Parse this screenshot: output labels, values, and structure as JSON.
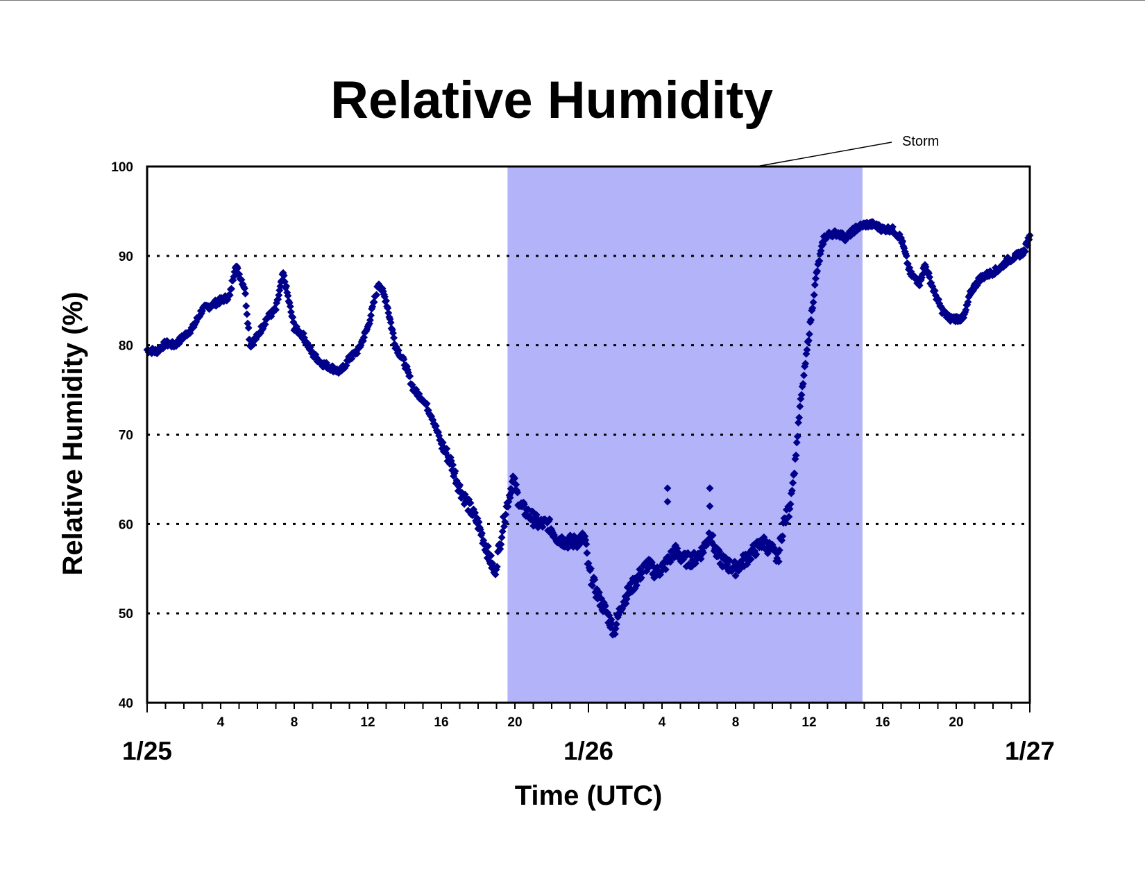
{
  "chart_data": {
    "type": "scatter",
    "title": "Relative Humidity",
    "xlabel": "Time (UTC)",
    "ylabel": "Relative Humidity (%)",
    "ylim": [
      40,
      100
    ],
    "xlim_hours": [
      0,
      48
    ],
    "yticks": [
      "40",
      "50",
      "60",
      "70",
      "80",
      "90",
      "100"
    ],
    "xticks": [
      {
        "hour": 4,
        "label": "4"
      },
      {
        "hour": 8,
        "label": "8"
      },
      {
        "hour": 12,
        "label": "12"
      },
      {
        "hour": 16,
        "label": "16"
      },
      {
        "hour": 20,
        "label": "20"
      },
      {
        "hour": 28,
        "label": "4"
      },
      {
        "hour": 32,
        "label": "8"
      },
      {
        "hour": 36,
        "label": "12"
      },
      {
        "hour": 40,
        "label": "16"
      },
      {
        "hour": 44,
        "label": "20"
      }
    ],
    "date_labels": [
      {
        "hour": 0,
        "label": "1/25"
      },
      {
        "hour": 24,
        "label": "1/26"
      },
      {
        "hour": 48,
        "label": "1/27"
      }
    ],
    "grid": "horizontal dotted",
    "shaded_region": {
      "label": "Storm",
      "x_start_hours": 19.6,
      "x_end_hours": 38.9,
      "color": "#b3b3fa"
    },
    "series": [
      {
        "marker": "diamond",
        "color": "#00008b",
        "points": [
          [
            0.0,
            79.5
          ],
          [
            0.5,
            79.3
          ],
          [
            1.0,
            80.2
          ],
          [
            1.5,
            80.0
          ],
          [
            2.0,
            81.0
          ],
          [
            2.5,
            82.0
          ],
          [
            3.0,
            84.0
          ],
          [
            3.5,
            84.5
          ],
          [
            4.0,
            85.0
          ],
          [
            4.5,
            85.5
          ],
          [
            4.8,
            89.0
          ],
          [
            5.3,
            86.5
          ],
          [
            5.6,
            80.0
          ],
          [
            6.0,
            81.0
          ],
          [
            6.5,
            83.0
          ],
          [
            7.0,
            84.0
          ],
          [
            7.4,
            88.0
          ],
          [
            7.7,
            85.0
          ],
          [
            8.0,
            82.0
          ],
          [
            8.5,
            81.0
          ],
          [
            9.0,
            79.0
          ],
          [
            9.5,
            78.0
          ],
          [
            10.0,
            77.5
          ],
          [
            10.5,
            77.0
          ],
          [
            11.0,
            78.5
          ],
          [
            11.5,
            79.5
          ],
          [
            12.0,
            82.0
          ],
          [
            12.6,
            87.0
          ],
          [
            13.0,
            85.0
          ],
          [
            13.5,
            80.0
          ],
          [
            14.0,
            78.0
          ],
          [
            14.5,
            75.0
          ],
          [
            15.0,
            74.0
          ],
          [
            15.5,
            72.0
          ],
          [
            16.0,
            69.0
          ],
          [
            16.5,
            67.0
          ],
          [
            17.0,
            64.0
          ],
          [
            17.5,
            62.0
          ],
          [
            18.0,
            60.0
          ],
          [
            18.5,
            57.0
          ],
          [
            18.9,
            54.5
          ],
          [
            19.2,
            58.0
          ],
          [
            19.5,
            61.5
          ],
          [
            19.9,
            65.0
          ],
          [
            20.3,
            62.0
          ],
          [
            20.8,
            61.0
          ],
          [
            21.3,
            60.0
          ],
          [
            21.8,
            60.0
          ],
          [
            22.3,
            58.5
          ],
          [
            22.8,
            58.0
          ],
          [
            23.3,
            58.0
          ],
          [
            23.8,
            58.5
          ],
          [
            24.0,
            55.0
          ],
          [
            24.5,
            52.0
          ],
          [
            25.0,
            50.0
          ],
          [
            25.4,
            48.0
          ],
          [
            25.8,
            51.0
          ],
          [
            26.2,
            52.5
          ],
          [
            26.7,
            54.0
          ],
          [
            27.2,
            55.5
          ],
          [
            27.7,
            54.5
          ],
          [
            28.2,
            55.5
          ],
          [
            28.7,
            57.0
          ],
          [
            29.2,
            56.0
          ],
          [
            29.7,
            56.0
          ],
          [
            30.2,
            57.0
          ],
          [
            30.6,
            59.0
          ],
          [
            31.0,
            56.5
          ],
          [
            31.5,
            55.5
          ],
          [
            32.0,
            55.0
          ],
          [
            32.5,
            56.0
          ],
          [
            33.0,
            57.0
          ],
          [
            33.5,
            58.0
          ],
          [
            34.0,
            57.0
          ],
          [
            34.3,
            56.0
          ],
          [
            34.6,
            60.0
          ],
          [
            34.9,
            61.5
          ],
          [
            35.2,
            66.0
          ],
          [
            35.5,
            73.0
          ],
          [
            35.8,
            78.0
          ],
          [
            36.1,
            83.0
          ],
          [
            36.4,
            88.0
          ],
          [
            36.8,
            92.0
          ],
          [
            37.2,
            92.5
          ],
          [
            37.6,
            92.5
          ],
          [
            38.0,
            92.0
          ],
          [
            38.5,
            93.0
          ],
          [
            39.0,
            93.5
          ],
          [
            39.5,
            93.5
          ],
          [
            40.0,
            93.0
          ],
          [
            40.5,
            93.0
          ],
          [
            41.0,
            92.0
          ],
          [
            41.5,
            88.0
          ],
          [
            42.0,
            87.0
          ],
          [
            42.3,
            89.0
          ],
          [
            42.8,
            86.0
          ],
          [
            43.2,
            84.0
          ],
          [
            43.6,
            83.0
          ],
          [
            44.0,
            83.0
          ],
          [
            44.4,
            83.0
          ],
          [
            44.8,
            86.0
          ],
          [
            45.3,
            87.5
          ],
          [
            45.8,
            88.0
          ],
          [
            46.3,
            88.5
          ],
          [
            46.8,
            89.5
          ],
          [
            47.3,
            90.0
          ],
          [
            47.7,
            90.5
          ],
          [
            48.0,
            92.3
          ]
        ]
      }
    ]
  }
}
